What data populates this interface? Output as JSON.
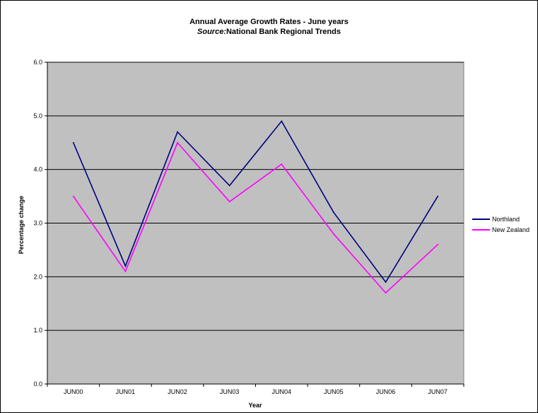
{
  "chart_data": {
    "type": "line",
    "title": "Annual Average Growth Rates - June years",
    "subtitle_source_label": "Source:",
    "subtitle_source_text": "National Bank Regional Trends",
    "xlabel": "Year",
    "ylabel": "Percentage change",
    "categories": [
      "JUN00",
      "JUN01",
      "JUN02",
      "JUN03",
      "JUN04",
      "JUN05",
      "JUN06",
      "JUN07"
    ],
    "ylim": [
      0,
      6
    ],
    "yticks": [
      "0.0",
      "1.0",
      "2.0",
      "3.0",
      "4.0",
      "5.0",
      "6.0"
    ],
    "grid": true,
    "legend_position": "right",
    "plot_background": "#c0c0c0",
    "series": [
      {
        "name": "Northland",
        "color": "#000080",
        "values": [
          4.5,
          2.2,
          4.7,
          3.7,
          4.9,
          3.2,
          1.9,
          3.5
        ]
      },
      {
        "name": "New Zealand",
        "color": "#ff00ff",
        "values": [
          3.5,
          2.1,
          4.5,
          3.4,
          4.1,
          2.8,
          1.7,
          2.6
        ]
      }
    ]
  }
}
